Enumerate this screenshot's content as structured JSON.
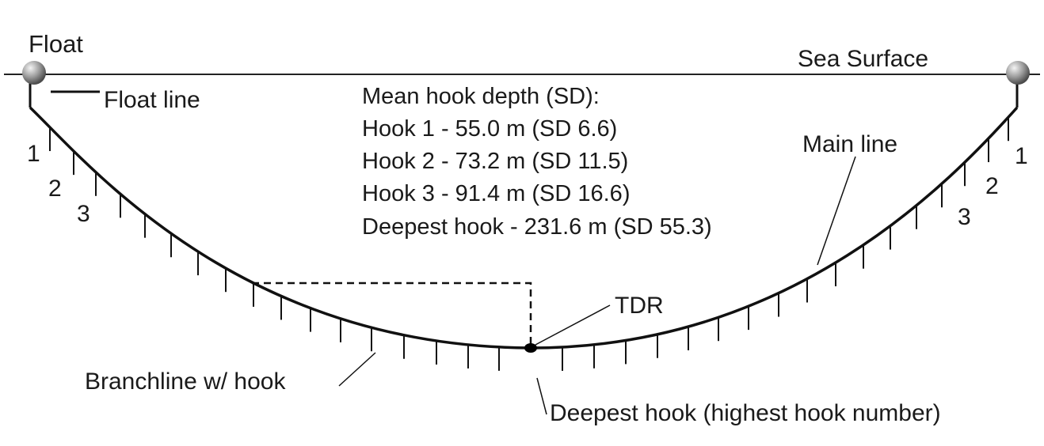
{
  "labels": {
    "float": "Float",
    "sea_surface": "Sea Surface",
    "float_line": "Float line",
    "main_line": "Main line",
    "tdr": "TDR",
    "branchline": "Branchline w/ hook",
    "deepest_hook": "Deepest hook (highest hook number)"
  },
  "hook_numbers_left": [
    "1",
    "2",
    "3"
  ],
  "hook_numbers_right": [
    "1",
    "2",
    "3"
  ],
  "depth_info": {
    "heading": "Mean hook depth (SD):",
    "lines": [
      "Hook 1 - 55.0 m (SD 6.6)",
      "Hook 2 - 73.2 m (SD 11.5)",
      "Hook 3 - 91.4 m (SD 16.6)",
      "Deepest hook  - 231.6 m (SD 55.3)"
    ]
  }
}
